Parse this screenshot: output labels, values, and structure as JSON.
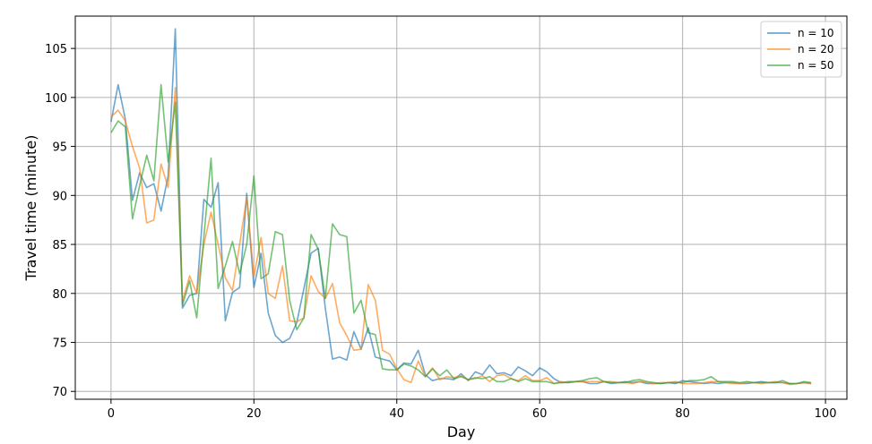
{
  "chart_data": {
    "type": "line",
    "xlabel": "Day",
    "ylabel": "Travel time (minute)",
    "xlim": [
      -5,
      103
    ],
    "ylim": [
      69.2,
      108.3
    ],
    "xticks": [
      0,
      20,
      40,
      60,
      80,
      100
    ],
    "yticks": [
      70,
      75,
      80,
      85,
      90,
      95,
      100,
      105
    ],
    "grid": true,
    "legend_position": "top-right",
    "x": [
      0,
      1,
      2,
      3,
      4,
      5,
      6,
      7,
      8,
      9,
      10,
      11,
      12,
      13,
      14,
      15,
      16,
      17,
      18,
      19,
      20,
      21,
      22,
      23,
      24,
      25,
      26,
      27,
      28,
      29,
      30,
      31,
      32,
      33,
      34,
      35,
      36,
      37,
      38,
      39,
      40,
      41,
      42,
      43,
      44,
      45,
      46,
      47,
      48,
      49,
      50,
      51,
      52,
      53,
      54,
      55,
      56,
      57,
      58,
      59,
      60,
      61,
      62,
      63,
      64,
      65,
      66,
      67,
      68,
      69,
      70,
      71,
      72,
      73,
      74,
      75,
      76,
      77,
      78,
      79,
      80,
      81,
      82,
      83,
      84,
      85,
      86,
      87,
      88,
      89,
      90,
      91,
      92,
      93,
      94,
      95,
      96,
      97,
      98
    ],
    "series": [
      {
        "name": "n = 10",
        "color": "#1f77b4",
        "values": [
          97.5,
          101.3,
          97.8,
          89.5,
          92.3,
          90.8,
          91.2,
          88.4,
          92.0,
          107.0,
          78.5,
          79.8,
          80.0,
          89.6,
          88.8,
          91.3,
          77.2,
          80.1,
          80.6,
          90.2,
          80.6,
          84.1,
          78.0,
          75.7,
          75.0,
          75.4,
          77.0,
          80.5,
          84.1,
          84.6,
          78.5,
          73.3,
          73.5,
          73.2,
          76.1,
          74.3,
          76.5,
          73.5,
          73.3,
          73.1,
          72.2,
          72.9,
          72.8,
          74.2,
          71.7,
          71.1,
          71.3,
          71.3,
          71.2,
          71.8,
          71.1,
          72.0,
          71.7,
          72.7,
          71.8,
          71.9,
          71.6,
          72.5,
          72.1,
          71.6,
          72.4,
          72.0,
          71.3,
          70.9,
          71.0,
          71.0,
          71.0,
          70.8,
          70.8,
          71.0,
          70.8,
          70.9,
          71.0,
          70.9,
          71.0,
          70.8,
          70.8,
          70.8,
          70.9,
          70.8,
          71.1,
          71.0,
          70.9,
          70.8,
          70.9,
          70.8,
          70.9,
          70.9,
          70.8,
          70.8,
          70.9,
          71.0,
          70.9,
          70.9,
          70.9,
          70.8,
          70.8,
          70.9,
          70.8
        ]
      },
      {
        "name": "n = 20",
        "color": "#ff7f0e",
        "values": [
          98.0,
          98.7,
          97.6,
          95.0,
          92.8,
          87.2,
          87.5,
          93.2,
          90.8,
          101.0,
          79.2,
          81.8,
          80.0,
          85.0,
          88.3,
          85.0,
          81.6,
          80.3,
          85.0,
          89.8,
          81.7,
          85.7,
          80.0,
          79.5,
          82.8,
          77.2,
          77.1,
          77.5,
          81.8,
          80.2,
          79.5,
          81.0,
          77.0,
          75.7,
          74.2,
          74.3,
          80.9,
          79.3,
          74.2,
          73.8,
          72.3,
          71.2,
          70.9,
          73.1,
          71.5,
          72.4,
          71.2,
          71.5,
          71.4,
          71.6,
          71.2,
          71.3,
          71.6,
          71.0,
          71.6,
          71.7,
          71.3,
          71.1,
          71.6,
          71.1,
          71.1,
          71.4,
          70.8,
          71.0,
          70.9,
          71.0,
          71.0,
          71.0,
          71.0,
          71.0,
          71.0,
          70.9,
          70.9,
          70.8,
          71.0,
          70.9,
          70.8,
          70.9,
          70.9,
          71.0,
          70.8,
          70.8,
          70.8,
          70.9,
          71.0,
          71.0,
          70.9,
          70.8,
          70.8,
          70.9,
          70.9,
          70.8,
          70.9,
          71.0,
          70.9,
          70.7,
          70.8,
          70.9,
          70.8
        ]
      },
      {
        "name": "n = 50",
        "color": "#2ca02c",
        "values": [
          96.4,
          97.6,
          97.0,
          87.6,
          91.0,
          94.1,
          91.5,
          101.3,
          93.4,
          99.5,
          78.8,
          81.3,
          77.5,
          85.8,
          93.8,
          80.5,
          82.8,
          85.3,
          82.0,
          85.0,
          92.0,
          81.5,
          82.0,
          86.3,
          86.0,
          79.3,
          76.3,
          77.5,
          86.0,
          84.5,
          79.5,
          87.1,
          86.0,
          85.8,
          78.0,
          79.3,
          76.0,
          75.8,
          72.3,
          72.2,
          72.2,
          72.8,
          72.6,
          72.2,
          71.5,
          72.3,
          71.6,
          72.2,
          71.3,
          71.5,
          71.2,
          71.4,
          71.3,
          71.5,
          71.0,
          71.0,
          71.3,
          71.0,
          71.3,
          71.0,
          71.0,
          71.0,
          70.8,
          70.9,
          70.9,
          71.0,
          71.1,
          71.3,
          71.4,
          71.0,
          70.9,
          70.9,
          70.9,
          71.1,
          71.2,
          71.0,
          70.9,
          70.8,
          70.9,
          70.9,
          70.9,
          71.1,
          71.1,
          71.2,
          71.5,
          71.0,
          71.0,
          71.0,
          70.9,
          71.0,
          70.9,
          70.9,
          70.9,
          70.9,
          71.1,
          70.8,
          70.8,
          71.0,
          70.9
        ]
      }
    ]
  }
}
